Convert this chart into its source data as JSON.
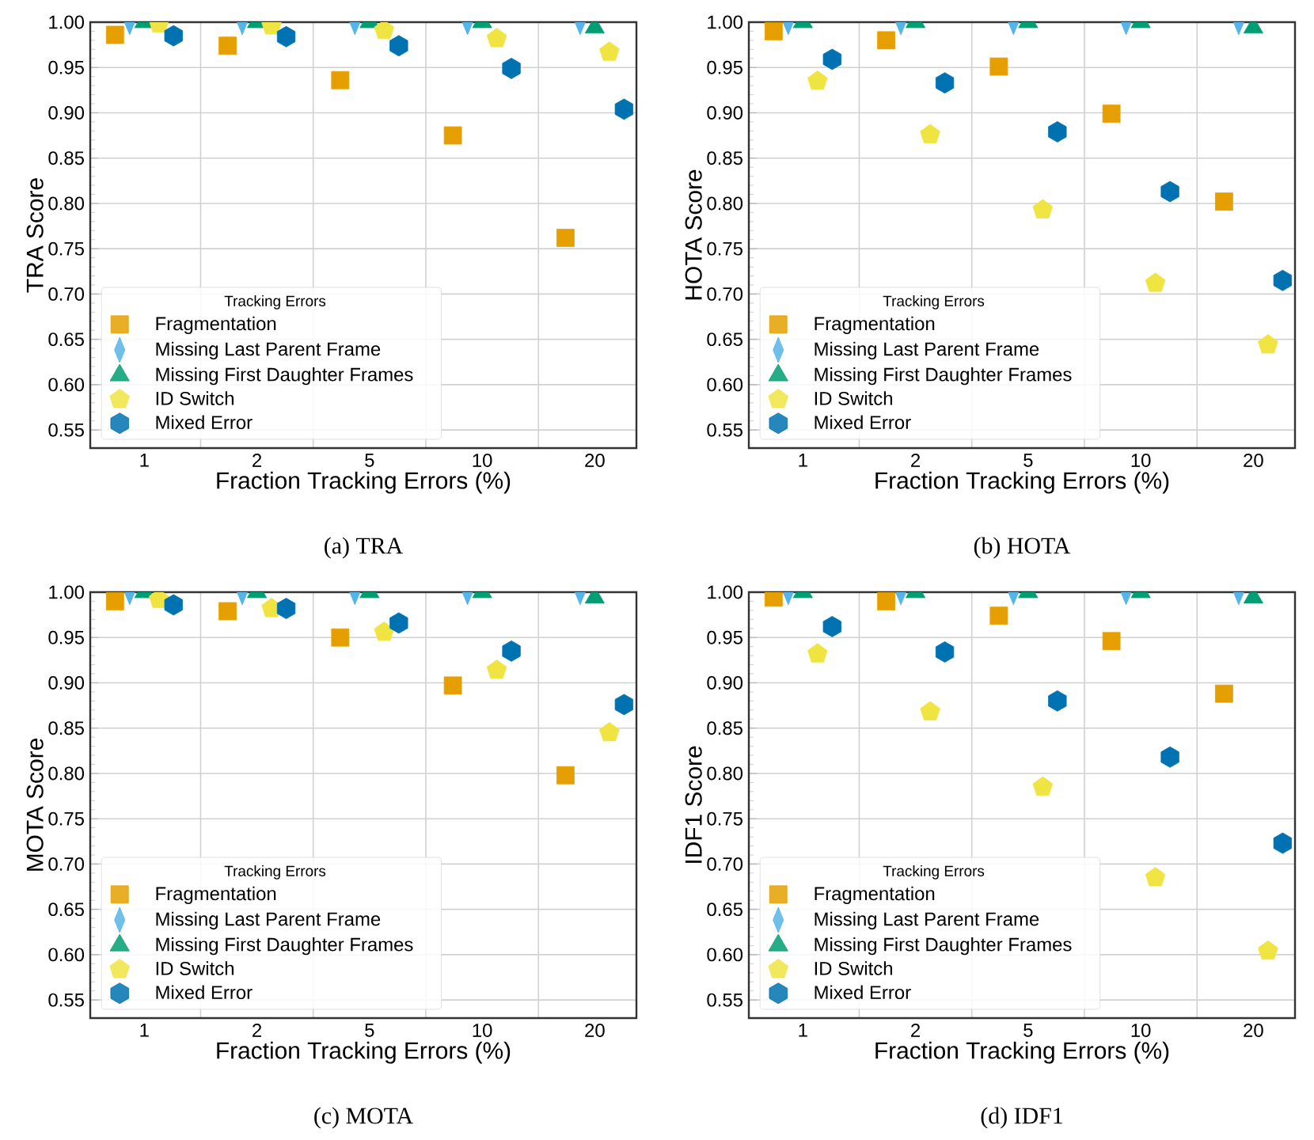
{
  "chart_data": [
    {
      "type": "scatter",
      "title": "(a) TRA",
      "xlabel": "Fraction Tracking Errors (%)",
      "ylabel": "TRA Score",
      "legend_title": "Tracking Errors",
      "legend": "bottom left",
      "grid": true,
      "categories": [
        "1",
        "2",
        "5",
        "10",
        "20"
      ],
      "ylim": [
        0.53,
        1.0
      ],
      "yticks": [
        0.55,
        {
          "value": 0.6,
          "label": "0.60"
        },
        0.65,
        {
          "value": 0.7,
          "label": "0.70"
        },
        0.75,
        {
          "value": 0.8,
          "label": "0.80"
        },
        0.85,
        {
          "value": 0.9,
          "label": "0.90"
        },
        0.95,
        {
          "value": 1.0,
          "label": "1.00"
        }
      ],
      "series": [
        {
          "name": "Fragmentation",
          "color": "#e69f00",
          "marker": "square",
          "values": [
            0.986,
            0.974,
            0.936,
            0.875,
            0.762
          ]
        },
        {
          "name": "Missing Last Parent Frame",
          "color": "#56b4e9",
          "marker": "diamond",
          "values": [
            1.0,
            1.0,
            1.0,
            1.0,
            1.0
          ]
        },
        {
          "name": "Missing First Daughter Frames",
          "color": "#009e73",
          "marker": "triangle",
          "values": [
            1.0,
            1.0,
            1.0,
            1.0,
            0.994
          ]
        },
        {
          "name": "ID Switch",
          "color": "#f0e442",
          "values": [
            0.998,
            0.996,
            0.991,
            0.982,
            0.967
          ]
        },
        {
          "name": "Mixed Error",
          "color": "#0072b2",
          "values": [
            0.985,
            0.984,
            0.974,
            0.949,
            0.904
          ]
        }
      ]
    },
    {
      "type": "scatter",
      "title": "(b) HOTA",
      "xlabel": "Fraction Tracking Errors (%)",
      "ylabel": "HOTA Score",
      "legend_title": "Tracking Errors",
      "legend": "bottom left",
      "grid": true,
      "categories": [
        "1",
        "2",
        "5",
        "10",
        "20"
      ],
      "ylim": [
        0.53,
        1.0
      ],
      "yticks": [
        0.55,
        {
          "value": 0.6,
          "label": "0.60"
        },
        0.65,
        {
          "value": 0.7,
          "label": "0.70"
        },
        0.75,
        {
          "value": 0.8,
          "label": "0.80"
        },
        0.85,
        {
          "value": 0.9,
          "label": "0.90"
        },
        0.95,
        {
          "value": 1.0,
          "label": "1.00"
        }
      ],
      "series": [
        {
          "name": "Fragmentation",
          "color": "#e69f00",
          "marker": "square",
          "values": [
            0.99,
            0.98,
            0.951,
            0.899,
            0.802
          ]
        },
        {
          "name": "Missing Last Parent Frame",
          "color": "#56b4e9",
          "marker": "diamond",
          "values": [
            1.0,
            1.0,
            1.0,
            1.0,
            1.0
          ]
        },
        {
          "name": "Missing First Daughter Frames",
          "color": "#009e73",
          "marker": "triangle",
          "values": [
            1.0,
            1.0,
            1.0,
            1.0,
            0.994
          ]
        },
        {
          "name": "ID Switch",
          "color": "#f0e442",
          "values": [
            0.935,
            0.876,
            0.793,
            0.712,
            0.644
          ]
        },
        {
          "name": "Mixed Error",
          "color": "#0072b2",
          "values": [
            0.959,
            0.933,
            0.879,
            0.813,
            0.715
          ]
        }
      ]
    },
    {
      "type": "scatter",
      "title": "(c) MOTA",
      "xlabel": "Fraction Tracking Errors (%)",
      "ylabel": "MOTA Score",
      "legend_title": "Tracking Errors",
      "legend": "bottom left",
      "grid": true,
      "categories": [
        "1",
        "2",
        "5",
        "10",
        "20"
      ],
      "ylim": [
        0.53,
        1.0
      ],
      "yticks": [
        0.55,
        {
          "value": 0.6,
          "label": "0.60"
        },
        0.65,
        {
          "value": 0.7,
          "label": "0.70"
        },
        0.75,
        {
          "value": 0.8,
          "label": "0.80"
        },
        0.85,
        {
          "value": 0.9,
          "label": "0.90"
        },
        0.95,
        {
          "value": 1.0,
          "label": "1.00"
        }
      ],
      "series": [
        {
          "name": "Fragmentation",
          "color": "#e69f00",
          "marker": "square",
          "values": [
            0.99,
            0.979,
            0.95,
            0.897,
            0.798
          ]
        },
        {
          "name": "Missing Last Parent Frame",
          "color": "#56b4e9",
          "marker": "diamond",
          "values": [
            1.0,
            1.0,
            1.0,
            1.0,
            1.0
          ]
        },
        {
          "name": "Missing First Daughter Frames",
          "color": "#009e73",
          "marker": "triangle",
          "values": [
            1.0,
            1.0,
            1.0,
            1.0,
            0.994
          ]
        },
        {
          "name": "ID Switch",
          "color": "#f0e442",
          "values": [
            0.992,
            0.982,
            0.956,
            0.914,
            0.845
          ]
        },
        {
          "name": "Mixed Error",
          "color": "#0072b2",
          "values": [
            0.986,
            0.982,
            0.966,
            0.935,
            0.876
          ]
        }
      ]
    },
    {
      "type": "scatter",
      "title": "(d) IDF1",
      "xlabel": "Fraction Tracking Errors (%)",
      "ylabel": "IDF1 Score",
      "legend_title": "Tracking Errors",
      "legend": "bottom left",
      "grid": true,
      "categories": [
        "1",
        "2",
        "5",
        "10",
        "20"
      ],
      "ylim": [
        0.53,
        1.0
      ],
      "yticks": [
        0.55,
        {
          "value": 0.6,
          "label": "0.60"
        },
        0.65,
        {
          "value": 0.7,
          "label": "0.70"
        },
        0.75,
        {
          "value": 0.8,
          "label": "0.80"
        },
        0.85,
        {
          "value": 0.9,
          "label": "0.90"
        },
        0.95,
        {
          "value": 1.0,
          "label": "1.00"
        }
      ],
      "series": [
        {
          "name": "Fragmentation",
          "color": "#e69f00",
          "marker": "square",
          "values": [
            0.994,
            0.99,
            0.974,
            0.946,
            0.888
          ]
        },
        {
          "name": "Missing Last Parent Frame",
          "color": "#56b4e9",
          "marker": "diamond",
          "values": [
            1.0,
            1.0,
            1.0,
            1.0,
            1.0
          ]
        },
        {
          "name": "Missing First Daughter Frames",
          "color": "#009e73",
          "marker": "triangle",
          "values": [
            1.0,
            1.0,
            1.0,
            1.0,
            0.994
          ]
        },
        {
          "name": "ID Switch",
          "color": "#f0e442",
          "values": [
            0.932,
            0.868,
            0.785,
            0.685,
            0.604
          ]
        },
        {
          "name": "Mixed Error",
          "color": "#0072b2",
          "values": [
            0.962,
            0.934,
            0.88,
            0.818,
            0.723
          ]
        }
      ]
    }
  ]
}
